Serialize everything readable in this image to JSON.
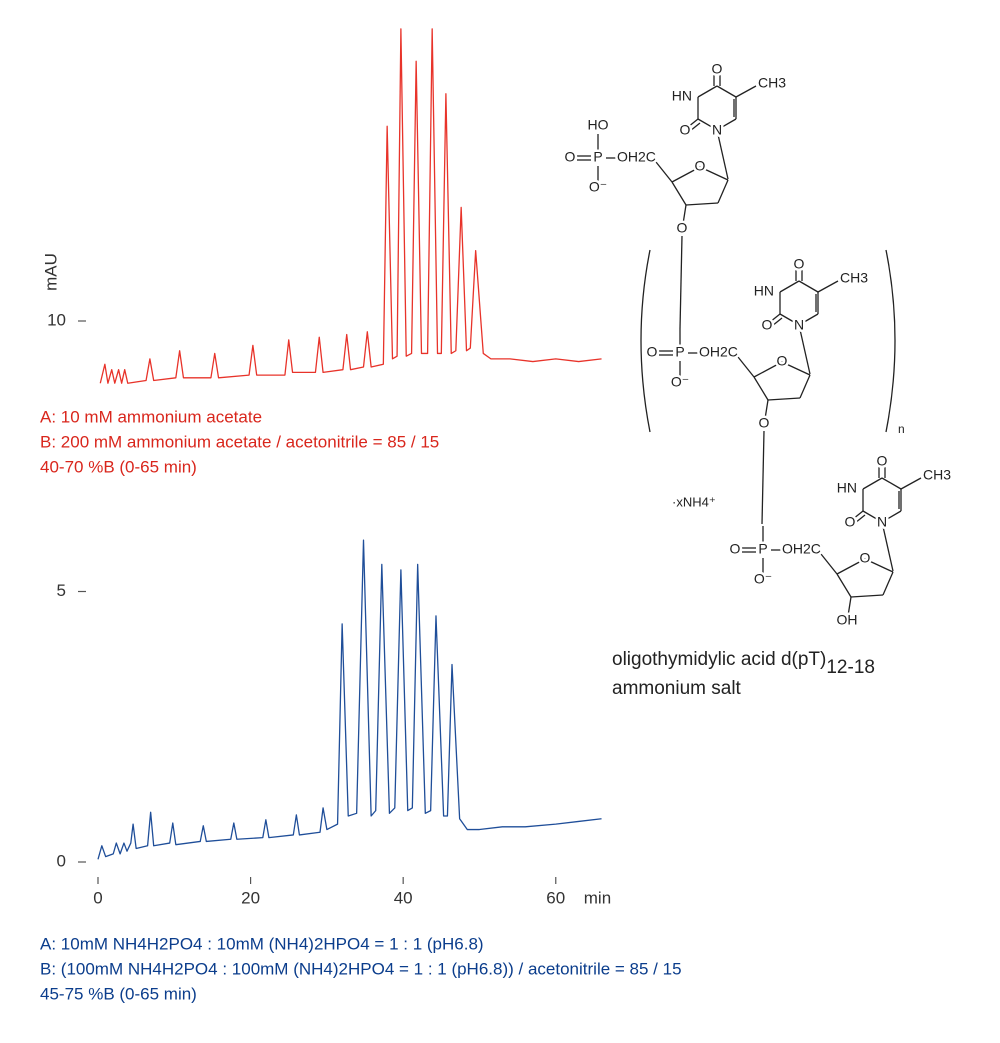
{
  "chart_data": {
    "type": "line",
    "ylabel": "mAU",
    "xlabel": "min",
    "xlim": [
      -5,
      68
    ],
    "ylim": [
      -0.5,
      15.5
    ],
    "xticks": [
      0,
      20,
      40,
      60
    ],
    "yticks": [
      0,
      5,
      10
    ],
    "series": [
      {
        "color": "#e8332a",
        "x": [
          0.3,
          0.9,
          1.3,
          1.8,
          2.2,
          2.7,
          3.1,
          3.5,
          3.9,
          6.3,
          6.8,
          7.3,
          10.2,
          10.7,
          11.2,
          14.8,
          15.3,
          15.8,
          19.8,
          20.3,
          20.8,
          24.5,
          25.0,
          25.5,
          28.5,
          29.0,
          29.5,
          32.1,
          32.6,
          33.1,
          34.8,
          35.3,
          35.8,
          37.4,
          37.9,
          38.6,
          39.2,
          39.7,
          40.4,
          41.1,
          41.7,
          42.4,
          43.2,
          43.8,
          44.5,
          45.0,
          45.6,
          46.3,
          46.9,
          47.6,
          48.3,
          48.8,
          49.5,
          50.5,
          51.5,
          54,
          57,
          60,
          63,
          66
        ],
        "values": [
          8.85,
          9.2,
          8.85,
          9.1,
          8.85,
          9.1,
          8.85,
          9.1,
          8.85,
          8.9,
          9.3,
          8.9,
          8.95,
          9.45,
          8.95,
          8.95,
          9.4,
          8.95,
          9.0,
          9.55,
          9.0,
          9.0,
          9.65,
          9.05,
          9.05,
          9.7,
          9.05,
          9.1,
          9.75,
          9.1,
          9.15,
          9.8,
          9.15,
          9.2,
          13.6,
          9.3,
          9.35,
          15.4,
          9.35,
          9.4,
          14.8,
          9.4,
          9.4,
          15.4,
          9.4,
          9.4,
          14.2,
          9.4,
          9.45,
          12.1,
          9.45,
          9.5,
          11.3,
          9.4,
          9.3,
          9.3,
          9.25,
          9.3,
          9.25,
          9.3
        ]
      },
      {
        "color": "#1f4e99",
        "x": [
          0,
          0.5,
          1.0,
          2.0,
          2.4,
          2.9,
          3.4,
          3.8,
          4.3,
          4.6,
          5.0,
          6.5,
          6.9,
          7.3,
          9.4,
          9.8,
          10.2,
          13.4,
          13.8,
          14.2,
          17.4,
          17.8,
          18.2,
          21.6,
          22.0,
          22.4,
          25.6,
          26.0,
          26.4,
          29.1,
          29.5,
          30.0,
          31.4,
          32.0,
          32.8,
          33.9,
          34.8,
          35.8,
          36.4,
          37.2,
          38.2,
          38.9,
          39.7,
          40.6,
          41.2,
          41.9,
          42.9,
          43.6,
          44.3,
          45.3,
          45.8,
          46.4,
          47.4,
          48.4,
          50,
          53,
          56,
          60,
          63,
          66
        ],
        "values": [
          0.05,
          0.3,
          0.1,
          0.15,
          0.35,
          0.15,
          0.35,
          0.2,
          0.35,
          0.7,
          0.25,
          0.3,
          0.92,
          0.3,
          0.35,
          0.72,
          0.32,
          0.38,
          0.67,
          0.38,
          0.42,
          0.72,
          0.42,
          0.45,
          0.78,
          0.45,
          0.5,
          0.87,
          0.5,
          0.55,
          1.0,
          0.6,
          0.7,
          4.4,
          0.85,
          0.9,
          5.95,
          0.85,
          0.95,
          5.5,
          0.9,
          1.0,
          5.4,
          0.95,
          1.0,
          5.5,
          0.9,
          0.95,
          4.55,
          0.85,
          0.85,
          3.65,
          0.8,
          0.6,
          0.6,
          0.65,
          0.65,
          0.7,
          0.75,
          0.8
        ]
      }
    ],
    "annotations": [
      {
        "color": "#d9261c",
        "lines": [
          "A: 10 mM ammonium acetate",
          "B: 200 mM ammonium acetate / acetonitrile = 85 / 15",
          "40-70 %B (0-65 min)"
        ]
      },
      {
        "color": "#0b3d8c",
        "lines": [
          "A: 10mM NH4H2PO4 : 10mM (NH4)2HPO4 = 1 : 1 (pH6.8)",
          "B: (100mM NH4H2PO4 : 100mM (NH4)2HPO4 = 1 : 1 (pH6.8)) / acetonitrile = 85  / 15",
          "45-75 %B (0-65 min)"
        ]
      }
    ]
  },
  "structure": {
    "units": [
      {
        "ho": "HO",
        "p_o": "O",
        "p": "P",
        "oh2c": "OH2C",
        "o_minus": "O⁻",
        "c4_o": "O",
        "n3": "HN",
        "ch3": "CH3",
        "c2_o": "O",
        "n1": "N",
        "o4": "O",
        "o3": "O"
      },
      {
        "p_o": "O",
        "p": "P",
        "oh2c": "OH2C",
        "o_minus": "O⁻",
        "c4_o": "O",
        "n3": "HN",
        "ch3": "CH3",
        "c2_o": "O",
        "n1": "N",
        "o4": "O",
        "o3": "O"
      },
      {
        "p_o": "O",
        "p": "P",
        "oh2c": "OH2C",
        "o_minus": "O⁻",
        "c4_o": "O",
        "n3": "HN",
        "ch3": "CH3",
        "c2_o": "O",
        "n1": "N",
        "o4": "O",
        "o3": "OH"
      }
    ],
    "repeat": "n",
    "counterion": "·xNH4⁺",
    "caption": "oligothymidylic acid d(pT)",
    "caption_subscript": "12-18",
    "caption_line2": "ammonium salt"
  }
}
